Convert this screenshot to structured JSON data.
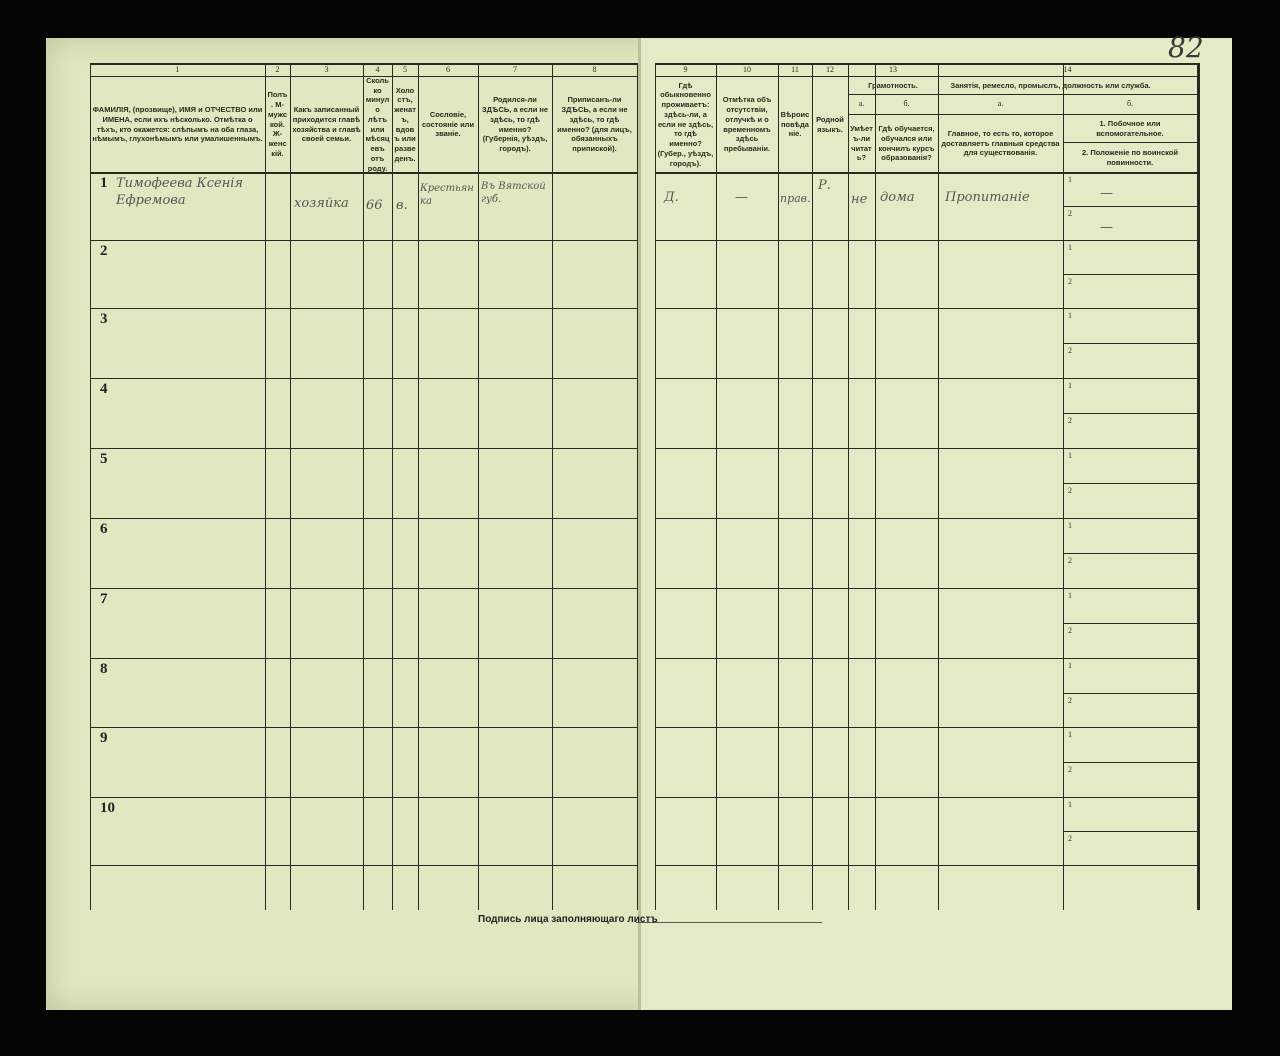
{
  "columns": [
    {
      "num": "1",
      "header": "ФАМИЛІЯ, (прозвище), ИМЯ и ОТЧЕСТВО или ИМЕНА, если ихъ нѣсколько. Отмѣтка о тѣхъ, кто окажется: слѣпымъ на оба глаза, нѣмымъ, глухонѣмымъ или умалишеннымъ."
    },
    {
      "num": "2",
      "header": "Полъ. М-мужской. Ж-женскій."
    },
    {
      "num": "3",
      "header": "Какъ записанный приходится главѣ хозяйства и главѣ своей семьи."
    },
    {
      "num": "4",
      "header": "Сколько минуло лѣтъ или мѣсяцевъ отъ роду."
    },
    {
      "num": "5",
      "header": "Холостъ, женатъ, вдовъ или разведенъ."
    },
    {
      "num": "6",
      "header": "Сословіе, состояніе или званіе."
    },
    {
      "num": "7",
      "header": "Родился-ли ЗДѢСЬ, а если не здѣсь, то гдѣ именно? (Губернія, уѣздъ, городъ)."
    },
    {
      "num": "8",
      "header": "Приписанъ-ли ЗДѢСЬ, а если не здѣсь, то гдѣ именно? (для лицъ, обязанныхъ припиской)."
    },
    {
      "num": "9",
      "header": "Гдѣ обыкновенно проживаетъ: здѣсь-ли, а если не здѣсь, то гдѣ именно? (Губер., уѣздъ, городъ)."
    },
    {
      "num": "10",
      "header": "Отмѣтка объ отсутствіи, отлучкѣ и о временномъ здѣсь пребываніи."
    },
    {
      "num": "11",
      "header": "Вѣроисповѣданіе."
    },
    {
      "num": "12",
      "header": "Родной языкъ."
    },
    {
      "num": "13",
      "header": "Грамотность.",
      "a_label": "а.",
      "a": "Умѣетъ-ли читать?",
      "b_label": "б.",
      "b": "Гдѣ обучается, обучался или кончилъ курсъ образованія?"
    },
    {
      "num": "14",
      "header": "Занятія, ремесло, промыслъ, должность или служба.",
      "a_label": "а.",
      "a": "Главное, то есть то, которое доставляетъ главныя средства для существованія.",
      "b_label": "б.",
      "b1": "1. Побочное или вспомогательное.",
      "b2": "2. Положеніе по воинской повинности."
    }
  ],
  "row_numbers": [
    "1",
    "2",
    "3",
    "4",
    "5",
    "6",
    "7",
    "8",
    "9",
    "10"
  ],
  "sub_numbers": [
    "1",
    "2"
  ],
  "entry_1": {
    "name": "Тимофеева Ксенія Ефремова",
    "relation": "хозяйка",
    "age": "66",
    "marital": "в.",
    "estate": "Крестьянка",
    "birthplace": "Въ Вятской губ.",
    "residence": "Д.",
    "absence": "—",
    "religion": "прав.",
    "language": "Р.",
    "can_read": "не",
    "education": "дома",
    "occupation": "Пропитаніе",
    "side_1": "—",
    "side_2": "—"
  },
  "footer": {
    "signature_label": "Подпись лица заполняющаго листъ"
  },
  "page_number": "82"
}
